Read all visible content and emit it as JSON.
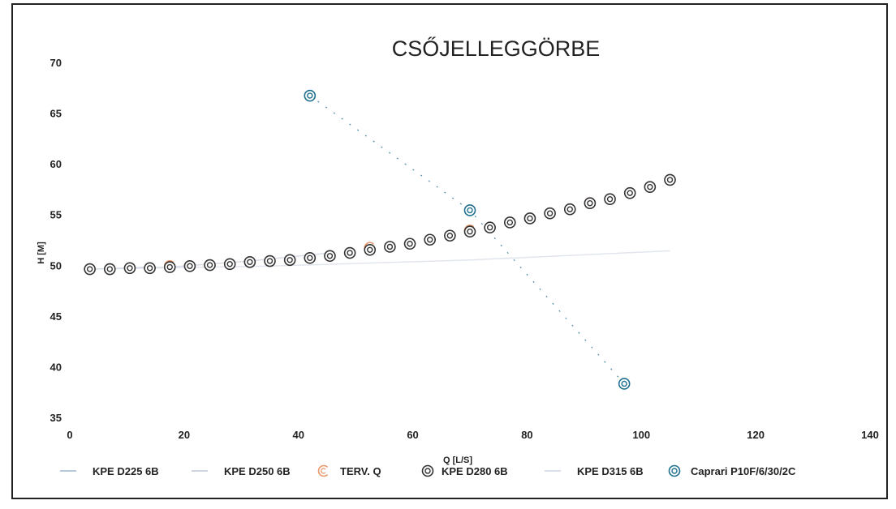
{
  "chart_data": {
    "type": "scatter",
    "title": "CSŐJELLEGGÖRBE",
    "xlabel": "Q [L/S]",
    "ylabel": "H [M]",
    "xlim": [
      0,
      140
    ],
    "ylim": [
      35,
      70
    ],
    "x_ticks": [
      "0",
      "20",
      "40",
      "60",
      "80",
      "100",
      "120",
      "140"
    ],
    "y_ticks": [
      "35",
      "40",
      "45",
      "50",
      "55",
      "60",
      "65",
      "70"
    ],
    "grid": false,
    "legend_position": "bottom",
    "legend": [
      {
        "label": "KPE D225 6B",
        "marker": "line",
        "color": "#b8c8dc"
      },
      {
        "label": "KPE D250 6B",
        "marker": "line",
        "color": "#cfd6e0"
      },
      {
        "label": "TERV. Q",
        "marker": "partial-ring",
        "color": "#e8956a"
      },
      {
        "label": "KPE D280 6B",
        "marker": "double-ring",
        "color": "#333333"
      },
      {
        "label": "KPE D315 6B",
        "marker": "line",
        "color": "#d9dfe8"
      },
      {
        "label": "Caprari P10F/6/30/2C",
        "marker": "double-ring",
        "color": "#1f6f8f"
      }
    ],
    "series": [
      {
        "name": "KPE D225 6B",
        "color": "#b8c8dc",
        "x": [
          3.5,
          7,
          10.5,
          14
        ],
        "y": [
          49.7,
          49.75,
          49.8,
          49.9
        ]
      },
      {
        "name": "KPE D250 6B",
        "color": "#cfd6e0",
        "x": [
          3.5,
          17.5,
          31.5,
          45.5
        ],
        "y": [
          49.7,
          49.9,
          50.5,
          51.3
        ]
      },
      {
        "name": "TERV. Q",
        "color": "#e8956a",
        "x": [
          7,
          17.5,
          52.5,
          70,
          91
        ],
        "y": [
          49.7,
          50.0,
          51.8,
          53.5,
          56.2
        ]
      },
      {
        "name": "KPE D280 6B",
        "color": "#333333",
        "x": [
          3.5,
          7,
          10.5,
          14,
          17.5,
          21,
          24.5,
          28,
          31.5,
          35,
          38.5,
          42,
          45.5,
          49,
          52.5,
          56,
          59.5,
          63,
          66.5,
          70,
          73.5,
          77,
          80.5,
          84,
          87.5,
          91,
          94.5,
          98,
          101.5,
          105
        ],
        "y": [
          49.7,
          49.7,
          49.8,
          49.8,
          49.9,
          50.0,
          50.1,
          50.2,
          50.4,
          50.5,
          50.6,
          50.8,
          51.0,
          51.3,
          51.6,
          51.9,
          52.2,
          52.6,
          53.0,
          53.4,
          53.8,
          54.3,
          54.7,
          55.2,
          55.6,
          56.2,
          56.6,
          57.2,
          57.8,
          58.5
        ]
      },
      {
        "name": "KPE D315 6B",
        "color": "#d9dfe8",
        "x": [
          3.5,
          35,
          70,
          105
        ],
        "y": [
          49.7,
          50.0,
          50.6,
          51.5
        ]
      },
      {
        "name": "Caprari P10F/6/30/2C",
        "color": "#1f6f8f",
        "x": [
          42,
          70,
          97
        ],
        "y": [
          66.8,
          55.5,
          38.4
        ]
      }
    ]
  }
}
